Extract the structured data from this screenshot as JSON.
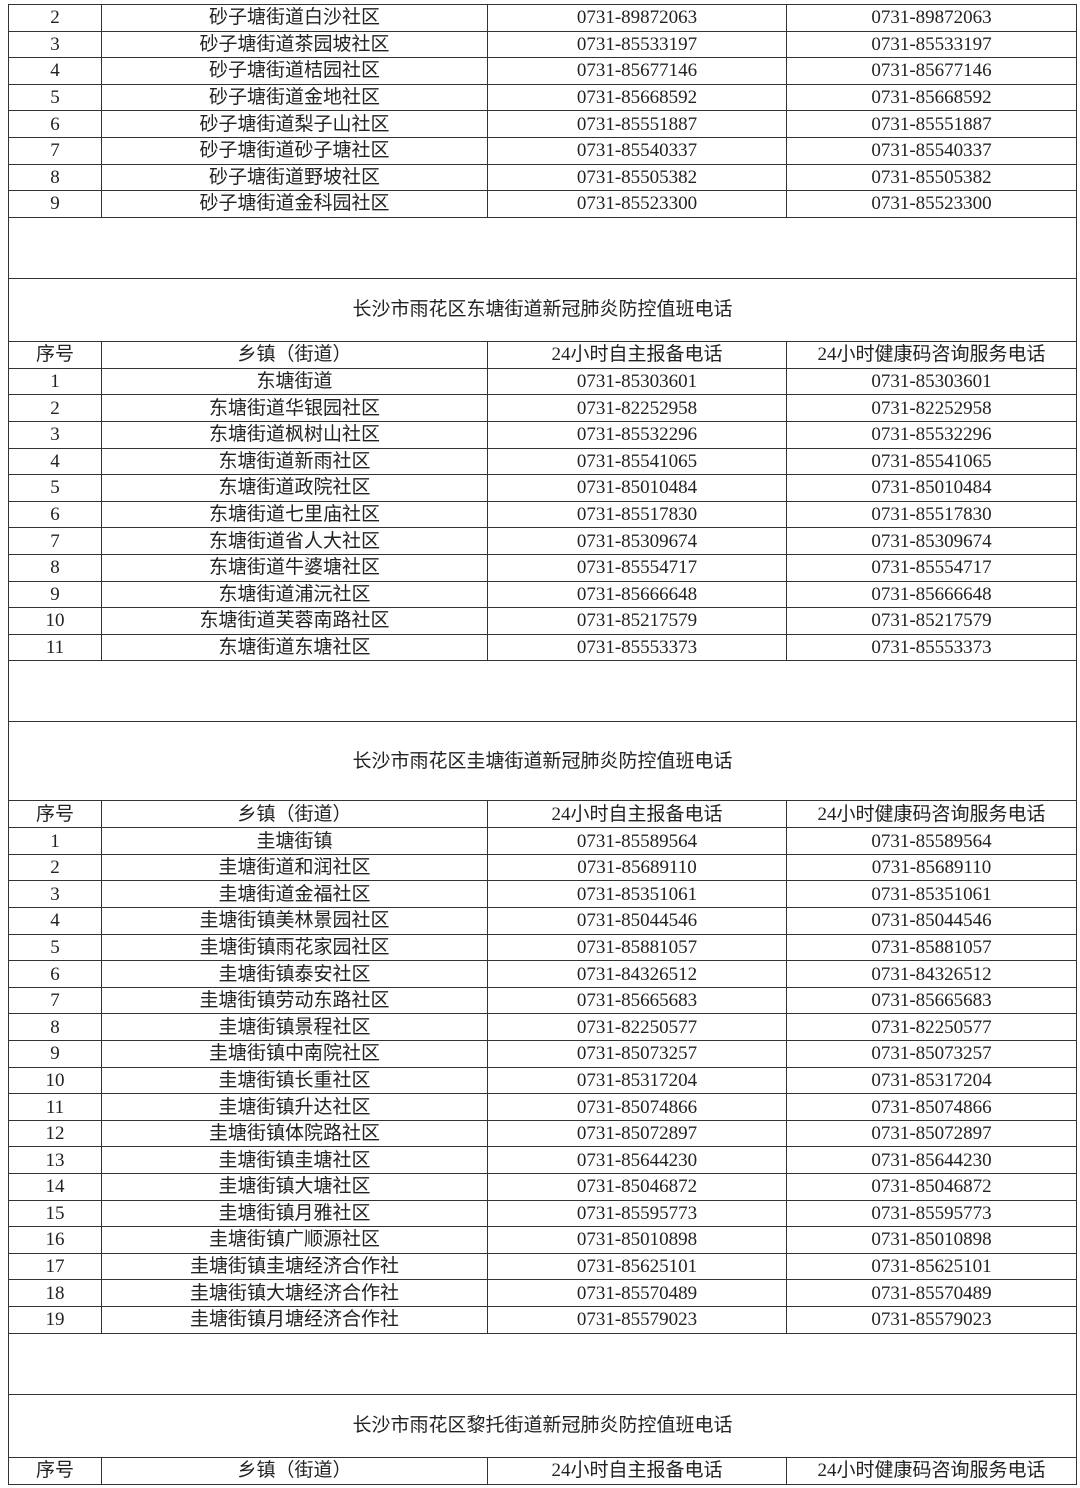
{
  "headers": [
    "序号",
    "乡镇（街道）",
    "24小时自主报备电话",
    "24小时健康码咨询服务电话"
  ],
  "sections": [
    {
      "title": "",
      "rows": [
        [
          "2",
          "砂子塘街道白沙社区",
          "0731-89872063",
          "0731-89872063"
        ],
        [
          "3",
          "砂子塘街道茶园坡社区",
          "0731-85533197",
          "0731-85533197"
        ],
        [
          "4",
          "砂子塘街道桔园社区",
          "0731-85677146",
          "0731-85677146"
        ],
        [
          "5",
          "砂子塘街道金地社区",
          "0731-85668592",
          "0731-85668592"
        ],
        [
          "6",
          "砂子塘街道梨子山社区",
          "0731-85551887",
          "0731-85551887"
        ],
        [
          "7",
          "砂子塘街道砂子塘社区",
          "0731-85540337",
          "0731-85540337"
        ],
        [
          "8",
          "砂子塘街道野坡社区",
          "0731-85505382",
          "0731-85505382"
        ],
        [
          "9",
          "砂子塘街道金科园社区",
          "0731-85523300",
          "0731-85523300"
        ]
      ]
    },
    {
      "title": "长沙市雨花区东塘街道新冠肺炎防控值班电话",
      "rows": [
        [
          "1",
          "东塘街道",
          "0731-85303601",
          "0731-85303601"
        ],
        [
          "2",
          "东塘街道华银园社区",
          "0731-82252958",
          "0731-82252958"
        ],
        [
          "3",
          "东塘街道枫树山社区",
          "0731-85532296",
          "0731-85532296"
        ],
        [
          "4",
          "东塘街道新雨社区",
          "0731-85541065",
          "0731-85541065"
        ],
        [
          "5",
          "东塘街道政院社区",
          "0731-85010484",
          "0731-85010484"
        ],
        [
          "6",
          "东塘街道七里庙社区",
          "0731-85517830",
          "0731-85517830"
        ],
        [
          "7",
          "东塘街道省人大社区",
          "0731-85309674",
          "0731-85309674"
        ],
        [
          "8",
          "东塘街道牛婆塘社区",
          "0731-85554717",
          "0731-85554717"
        ],
        [
          "9",
          "东塘街道浦沅社区",
          "0731-85666648",
          "0731-85666648"
        ],
        [
          "10",
          "东塘街道芙蓉南路社区",
          "0731-85217579",
          "0731-85217579"
        ],
        [
          "11",
          "东塘街道东塘社区",
          "0731-85553373",
          "0731-85553373"
        ]
      ]
    },
    {
      "title": "长沙市雨花区圭塘街道新冠肺炎防控值班电话",
      "rows": [
        [
          "1",
          "圭塘街镇",
          "0731-85589564",
          "0731-85589564"
        ],
        [
          "2",
          "圭塘街道和润社区",
          "0731-85689110",
          "0731-85689110"
        ],
        [
          "3",
          "圭塘街道金福社区",
          "0731-85351061",
          "0731-85351061"
        ],
        [
          "4",
          "圭塘街镇美林景园社区",
          "0731-85044546",
          "0731-85044546"
        ],
        [
          "5",
          "圭塘街镇雨花家园社区",
          "0731-85881057",
          "0731-85881057"
        ],
        [
          "6",
          "圭塘街镇泰安社区",
          "0731-84326512",
          "0731-84326512"
        ],
        [
          "7",
          "圭塘街镇劳动东路社区",
          "0731-85665683",
          "0731-85665683"
        ],
        [
          "8",
          "圭塘街镇景程社区",
          "0731-82250577",
          "0731-82250577"
        ],
        [
          "9",
          "圭塘街镇中南院社区",
          "0731-85073257",
          "0731-85073257"
        ],
        [
          "10",
          "圭塘街镇长重社区",
          "0731-85317204",
          "0731-85317204"
        ],
        [
          "11",
          "圭塘街镇升达社区",
          "0731-85074866",
          "0731-85074866"
        ],
        [
          "12",
          "圭塘街镇体院路社区",
          "0731-85072897",
          "0731-85072897"
        ],
        [
          "13",
          "圭塘街镇圭塘社区",
          "0731-85644230",
          "0731-85644230"
        ],
        [
          "14",
          "圭塘街镇大塘社区",
          "0731-85046872",
          "0731-85046872"
        ],
        [
          "15",
          "圭塘街镇月雅社区",
          "0731-85595773",
          "0731-85595773"
        ],
        [
          "16",
          "圭塘街镇广顺源社区",
          "0731-85010898",
          "0731-85010898"
        ],
        [
          "17",
          "圭塘街镇圭塘经济合作社",
          "0731-85625101",
          "0731-85625101"
        ],
        [
          "18",
          "圭塘街镇大塘经济合作社",
          "0731-85570489",
          "0731-85570489"
        ],
        [
          "19",
          "圭塘街镇月塘经济合作社",
          "0731-85579023",
          "0731-85579023"
        ]
      ]
    },
    {
      "title": "长沙市雨花区黎托街道新冠肺炎防控值班电话",
      "rows": []
    }
  ]
}
